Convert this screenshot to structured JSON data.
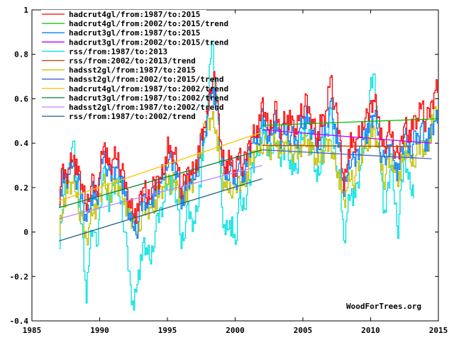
{
  "chart_data": {
    "type": "line",
    "title": "",
    "xlabel": "",
    "ylabel": "",
    "xlim": [
      1985,
      2015
    ],
    "ylim": [
      -0.4,
      1
    ],
    "grid": false,
    "legend_position": "top-left",
    "x_ticks": [
      "1985",
      "1990",
      "1995",
      "2000",
      "2005",
      "2010",
      "2015"
    ],
    "x_tick_values": [
      1985,
      1990,
      1995,
      2000,
      2005,
      2010,
      2015
    ],
    "y_ticks": [
      "-0.4",
      "-0.2",
      "0",
      "0.2",
      "0.4",
      "0.6",
      "0.8",
      "1"
    ],
    "y_tick_values": [
      -0.4,
      -0.2,
      0,
      0.2,
      0.4,
      0.6,
      0.8,
      1
    ],
    "credit": "WoodForTrees.org",
    "series": [
      {
        "name": "hadcrut4gl/from:1987/to:2015",
        "color": "#ff0000",
        "kind": "raw",
        "x": [
          1987.0,
          1987.25,
          1987.5,
          1987.75,
          1988.0,
          1988.25,
          1988.5,
          1988.75,
          1989.0,
          1989.25,
          1989.5,
          1989.75,
          1990.0,
          1990.25,
          1990.5,
          1990.75,
          1991.0,
          1991.25,
          1991.5,
          1991.75,
          1992.0,
          1992.25,
          1992.5,
          1992.75,
          1993.0,
          1993.25,
          1993.5,
          1993.75,
          1994.0,
          1994.25,
          1994.5,
          1994.75,
          1995.0,
          1995.25,
          1995.5,
          1995.75,
          1996.0,
          1996.25,
          1996.5,
          1996.75,
          1997.0,
          1997.25,
          1997.5,
          1997.75,
          1998.0,
          1998.25,
          1998.5,
          1998.75,
          1999.0,
          1999.25,
          1999.5,
          1999.75,
          2000.0,
          2000.25,
          2000.5,
          2000.75,
          2001.0,
          2001.25,
          2001.5,
          2001.75,
          2002.0,
          2002.25,
          2002.5,
          2002.75,
          2003.0,
          2003.25,
          2003.5,
          2003.75,
          2004.0,
          2004.25,
          2004.5,
          2004.75,
          2005.0,
          2005.25,
          2005.5,
          2005.75,
          2006.0,
          2006.25,
          2006.5,
          2006.75,
          2007.0,
          2007.25,
          2007.5,
          2007.75,
          2008.0,
          2008.25,
          2008.5,
          2008.75,
          2009.0,
          2009.25,
          2009.5,
          2009.75,
          2010.0,
          2010.25,
          2010.5,
          2010.75,
          2011.0,
          2011.25,
          2011.5,
          2011.75,
          2012.0,
          2012.25,
          2012.5,
          2012.75,
          2013.0,
          2013.25,
          2013.5,
          2013.75,
          2014.0,
          2014.25,
          2014.5,
          2014.75
        ],
        "y": [
          0.17,
          0.27,
          0.25,
          0.3,
          0.36,
          0.28,
          0.25,
          0.18,
          0.12,
          0.2,
          0.22,
          0.17,
          0.28,
          0.42,
          0.33,
          0.28,
          0.33,
          0.35,
          0.3,
          0.24,
          0.18,
          0.12,
          0.1,
          0.08,
          0.16,
          0.2,
          0.15,
          0.2,
          0.2,
          0.24,
          0.25,
          0.3,
          0.38,
          0.34,
          0.35,
          0.3,
          0.2,
          0.22,
          0.28,
          0.27,
          0.3,
          0.34,
          0.44,
          0.47,
          0.58,
          0.7,
          0.66,
          0.52,
          0.35,
          0.3,
          0.32,
          0.3,
          0.25,
          0.38,
          0.3,
          0.32,
          0.4,
          0.44,
          0.46,
          0.48,
          0.58,
          0.5,
          0.46,
          0.52,
          0.55,
          0.45,
          0.5,
          0.52,
          0.5,
          0.48,
          0.44,
          0.55,
          0.56,
          0.58,
          0.52,
          0.5,
          0.42,
          0.48,
          0.5,
          0.55,
          0.72,
          0.6,
          0.5,
          0.4,
          0.2,
          0.34,
          0.4,
          0.38,
          0.42,
          0.45,
          0.52,
          0.5,
          0.58,
          0.6,
          0.55,
          0.42,
          0.36,
          0.45,
          0.45,
          0.38,
          0.32,
          0.42,
          0.5,
          0.44,
          0.46,
          0.5,
          0.5,
          0.6,
          0.5,
          0.52,
          0.58,
          0.65
        ]
      },
      {
        "name": "hadcrut4gl/from:2002/to:2015/trend",
        "color": "#00c000",
        "kind": "trend",
        "x": [
          2002.0,
          2015.0
        ],
        "y": [
          0.48,
          0.51
        ]
      },
      {
        "name": "hadcrut3gl/from:1987/to:2015",
        "color": "#0080ff",
        "kind": "raw",
        "x": [
          1987.0,
          1987.25,
          1987.5,
          1987.75,
          1988.0,
          1988.25,
          1988.5,
          1988.75,
          1989.0,
          1989.25,
          1989.5,
          1989.75,
          1990.0,
          1990.25,
          1990.5,
          1990.75,
          1991.0,
          1991.25,
          1991.5,
          1991.75,
          1992.0,
          1992.25,
          1992.5,
          1992.75,
          1993.0,
          1993.25,
          1993.5,
          1993.75,
          1994.0,
          1994.25,
          1994.5,
          1994.75,
          1995.0,
          1995.25,
          1995.5,
          1995.75,
          1996.0,
          1996.25,
          1996.5,
          1996.75,
          1997.0,
          1997.25,
          1997.5,
          1997.75,
          1998.0,
          1998.25,
          1998.5,
          1998.75,
          1999.0,
          1999.25,
          1999.5,
          1999.75,
          2000.0,
          2000.25,
          2000.5,
          2000.75,
          2001.0,
          2001.25,
          2001.5,
          2001.75,
          2002.0,
          2002.25,
          2002.5,
          2002.75,
          2003.0,
          2003.25,
          2003.5,
          2003.75,
          2004.0,
          2004.25,
          2004.5,
          2004.75,
          2005.0,
          2005.25,
          2005.5,
          2005.75,
          2006.0,
          2006.25,
          2006.5,
          2006.75,
          2007.0,
          2007.25,
          2007.5,
          2007.75,
          2008.0,
          2008.25,
          2008.5,
          2008.75,
          2009.0,
          2009.25,
          2009.5,
          2009.75,
          2010.0,
          2010.25,
          2010.5,
          2010.75,
          2011.0,
          2011.25,
          2011.5,
          2011.75,
          2012.0,
          2012.25,
          2012.5,
          2012.75,
          2013.0,
          2013.25,
          2013.5,
          2013.75,
          2014.0,
          2014.25,
          2014.5,
          2014.75
        ],
        "y": [
          0.15,
          0.24,
          0.22,
          0.26,
          0.32,
          0.24,
          0.2,
          0.12,
          0.06,
          0.14,
          0.18,
          0.12,
          0.24,
          0.36,
          0.3,
          0.24,
          0.28,
          0.3,
          0.26,
          0.2,
          0.12,
          0.05,
          0.03,
          0.02,
          0.1,
          0.16,
          0.12,
          0.16,
          0.16,
          0.2,
          0.22,
          0.26,
          0.34,
          0.3,
          0.3,
          0.26,
          0.14,
          0.18,
          0.24,
          0.22,
          0.26,
          0.3,
          0.4,
          0.44,
          0.56,
          0.66,
          0.6,
          0.48,
          0.3,
          0.26,
          0.28,
          0.26,
          0.2,
          0.32,
          0.26,
          0.28,
          0.36,
          0.4,
          0.42,
          0.44,
          0.52,
          0.46,
          0.42,
          0.48,
          0.5,
          0.4,
          0.44,
          0.46,
          0.44,
          0.42,
          0.4,
          0.48,
          0.5,
          0.52,
          0.46,
          0.44,
          0.38,
          0.42,
          0.44,
          0.48,
          0.6,
          0.5,
          0.42,
          0.34,
          0.16,
          0.28,
          0.34,
          0.3,
          0.36,
          0.4,
          0.46,
          0.44,
          0.5,
          0.52,
          0.46,
          0.36,
          0.3,
          0.38,
          0.4,
          0.32,
          0.26,
          0.36,
          0.44,
          0.38,
          0.38,
          0.42,
          0.42,
          0.5,
          0.4,
          0.42,
          0.46,
          0.5
        ]
      },
      {
        "name": "hadcrut3gl/from:2002/to:2015/trend",
        "color": "#c000ff",
        "kind": "trend",
        "x": [
          2002.0,
          2014.5
        ],
        "y": [
          0.46,
          0.4
        ]
      },
      {
        "name": "rss/from:1987/to:2013",
        "color": "#00e0e0",
        "kind": "raw",
        "x": [
          1987.0,
          1987.25,
          1987.5,
          1987.75,
          1988.0,
          1988.25,
          1988.5,
          1988.75,
          1989.0,
          1989.25,
          1989.5,
          1989.75,
          1990.0,
          1990.25,
          1990.5,
          1990.75,
          1991.0,
          1991.25,
          1991.5,
          1991.75,
          1992.0,
          1992.25,
          1992.5,
          1992.75,
          1993.0,
          1993.25,
          1993.5,
          1993.75,
          1994.0,
          1994.25,
          1994.5,
          1994.75,
          1995.0,
          1995.25,
          1995.5,
          1995.75,
          1996.0,
          1996.25,
          1996.5,
          1996.75,
          1997.0,
          1997.25,
          1997.5,
          1997.75,
          1998.0,
          1998.25,
          1998.5,
          1998.75,
          1999.0,
          1999.25,
          1999.5,
          1999.75,
          2000.0,
          2000.25,
          2000.5,
          2000.75,
          2001.0,
          2001.25,
          2001.5,
          2001.75,
          2002.0,
          2002.25,
          2002.5,
          2002.75,
          2003.0,
          2003.25,
          2003.5,
          2003.75,
          2004.0,
          2004.25,
          2004.5,
          2004.75,
          2005.0,
          2005.25,
          2005.5,
          2005.75,
          2006.0,
          2006.25,
          2006.5,
          2006.75,
          2007.0,
          2007.25,
          2007.5,
          2007.75,
          2008.0,
          2008.25,
          2008.5,
          2008.75,
          2009.0,
          2009.25,
          2009.5,
          2009.75,
          2010.0,
          2010.25,
          2010.5,
          2010.75,
          2011.0,
          2011.25,
          2011.5,
          2011.75,
          2012.0,
          2012.25,
          2012.5,
          2012.75,
          2013.0
        ],
        "y": [
          -0.05,
          0.15,
          0.2,
          0.3,
          0.42,
          0.28,
          0.1,
          -0.05,
          -0.32,
          -0.05,
          0.05,
          -0.1,
          0.1,
          0.3,
          0.18,
          0.12,
          0.2,
          0.22,
          0.15,
          0.05,
          -0.1,
          -0.25,
          -0.34,
          -0.2,
          -0.15,
          -0.05,
          -0.1,
          -0.12,
          -0.02,
          0.05,
          0.1,
          0.15,
          0.25,
          0.2,
          0.2,
          0.1,
          -0.05,
          0.02,
          0.1,
          0.05,
          0.05,
          0.15,
          0.3,
          0.4,
          0.62,
          0.88,
          0.7,
          0.45,
          0.1,
          0.0,
          0.05,
          0.02,
          -0.08,
          0.15,
          0.12,
          0.15,
          0.2,
          0.3,
          0.35,
          0.38,
          0.48,
          0.4,
          0.34,
          0.38,
          0.45,
          0.3,
          0.36,
          0.4,
          0.32,
          0.3,
          0.26,
          0.38,
          0.45,
          0.48,
          0.38,
          0.36,
          0.24,
          0.3,
          0.38,
          0.42,
          0.56,
          0.4,
          0.3,
          0.2,
          -0.05,
          0.1,
          0.2,
          0.15,
          0.2,
          0.3,
          0.4,
          0.45,
          0.66,
          0.7,
          0.5,
          0.3,
          0.05,
          0.2,
          0.3,
          0.15,
          0.02,
          0.2,
          0.35,
          0.25,
          0.2
        ]
      },
      {
        "name": "rss/from:2002/to:2013/trend",
        "color": "#c04000",
        "kind": "trend",
        "x": [
          2002.0,
          2013.0
        ],
        "y": [
          0.39,
          0.385
        ]
      },
      {
        "name": "hadsst2gl/from:1987/to:2015",
        "color": "#c0c000",
        "kind": "raw",
        "x": [
          1987.0,
          1987.25,
          1987.5,
          1987.75,
          1988.0,
          1988.25,
          1988.5,
          1988.75,
          1989.0,
          1989.25,
          1989.5,
          1989.75,
          1990.0,
          1990.25,
          1990.5,
          1990.75,
          1991.0,
          1991.25,
          1991.5,
          1991.75,
          1992.0,
          1992.25,
          1992.5,
          1992.75,
          1993.0,
          1993.25,
          1993.5,
          1993.75,
          1994.0,
          1994.25,
          1994.5,
          1994.75,
          1995.0,
          1995.25,
          1995.5,
          1995.75,
          1996.0,
          1996.25,
          1996.5,
          1996.75,
          1997.0,
          1997.25,
          1997.5,
          1997.75,
          1998.0,
          1998.25,
          1998.5,
          1998.75,
          1999.0,
          1999.25,
          1999.5,
          1999.75,
          2000.0,
          2000.25,
          2000.5,
          2000.75,
          2001.0,
          2001.25,
          2001.5,
          2001.75,
          2002.0,
          2002.25,
          2002.5,
          2002.75,
          2003.0,
          2003.25,
          2003.5,
          2003.75,
          2004.0,
          2004.25,
          2004.5,
          2004.75,
          2005.0,
          2005.25,
          2005.5,
          2005.75,
          2006.0,
          2006.25,
          2006.5,
          2006.75,
          2007.0,
          2007.25,
          2007.5,
          2007.75,
          2008.0,
          2008.25,
          2008.5,
          2008.75,
          2009.0,
          2009.25,
          2009.5,
          2009.75,
          2010.0,
          2010.25,
          2010.5,
          2010.75,
          2011.0,
          2011.25,
          2011.5,
          2011.75,
          2012.0,
          2012.25,
          2012.5,
          2012.75,
          2013.0,
          2013.25,
          2013.5,
          2013.75,
          2014.0,
          2014.25,
          2014.5,
          2014.75
        ],
        "y": [
          0.0,
          0.12,
          0.18,
          0.2,
          0.22,
          0.18,
          0.1,
          0.02,
          -0.04,
          0.05,
          0.12,
          0.1,
          0.15,
          0.22,
          0.2,
          0.18,
          0.2,
          0.22,
          0.2,
          0.16,
          0.1,
          0.06,
          0.04,
          0.0,
          0.06,
          0.1,
          0.1,
          0.12,
          0.12,
          0.16,
          0.18,
          0.2,
          0.24,
          0.22,
          0.22,
          0.2,
          0.14,
          0.16,
          0.2,
          0.2,
          0.24,
          0.3,
          0.4,
          0.46,
          0.5,
          0.52,
          0.48,
          0.38,
          0.24,
          0.2,
          0.2,
          0.2,
          0.18,
          0.24,
          0.22,
          0.24,
          0.3,
          0.34,
          0.36,
          0.38,
          0.4,
          0.38,
          0.36,
          0.4,
          0.42,
          0.36,
          0.38,
          0.4,
          0.38,
          0.36,
          0.34,
          0.38,
          0.4,
          0.42,
          0.38,
          0.36,
          0.3,
          0.34,
          0.36,
          0.38,
          0.4,
          0.34,
          0.28,
          0.22,
          0.12,
          0.2,
          0.26,
          0.24,
          0.28,
          0.34,
          0.4,
          0.4,
          0.44,
          0.44,
          0.38,
          0.3,
          0.24,
          0.3,
          0.34,
          0.28,
          0.24,
          0.3,
          0.38,
          0.34,
          0.32,
          0.34,
          0.36,
          0.4,
          0.36,
          0.4,
          0.48,
          0.54
        ]
      },
      {
        "name": "hadsst2gl/from:2002/to:2015/trend",
        "color": "#4060e0",
        "kind": "trend",
        "x": [
          2002.0,
          2014.5
        ],
        "y": [
          0.37,
          0.33
        ]
      },
      {
        "name": "hadcrut4gl/from:1987/to:2002/trend",
        "color": "#ffc000",
        "kind": "trend",
        "x": [
          1987.0,
          2002.0
        ],
        "y": [
          0.14,
          0.45
        ]
      },
      {
        "name": "hadcrut3gl/from:1987/to:2002/trend",
        "color": "#008040",
        "kind": "trend",
        "x": [
          1987.0,
          2002.0
        ],
        "y": [
          0.11,
          0.37
        ]
      },
      {
        "name": "hadsst2gl/from:1987/to:2002/trend",
        "color": "#c080ff",
        "kind": "trend",
        "x": [
          1987.0,
          2002.0
        ],
        "y": [
          0.06,
          0.3
        ]
      },
      {
        "name": "rss/from:1987/to:2002/trend",
        "color": "#206080",
        "kind": "trend",
        "x": [
          1987.0,
          2002.0
        ],
        "y": [
          -0.04,
          0.24
        ]
      }
    ]
  }
}
